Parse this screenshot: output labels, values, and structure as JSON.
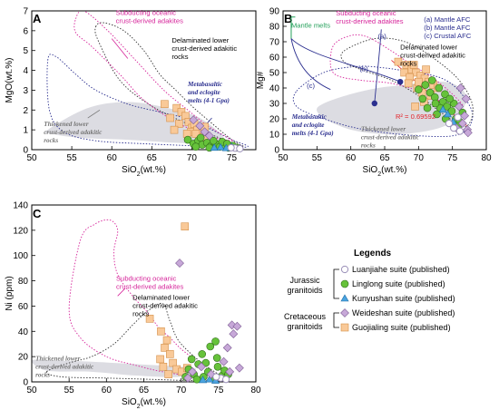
{
  "legend": {
    "title": "Legends",
    "group_jurassic": [
      "Jurassic",
      "granitoids"
    ],
    "group_cretaceous": [
      "Cretaceous",
      "granitoids"
    ],
    "items": [
      {
        "label": "Luanjiahe suite (published)",
        "marker": "circle-open",
        "color": "#9a8fb8"
      },
      {
        "label": "Linglong suite (published)",
        "marker": "circle",
        "color": "#66c23a"
      },
      {
        "label": "Kunyushan suite (published)",
        "marker": "triangle",
        "color": "#4aa3df"
      },
      {
        "label": "Weideshan suite (published)",
        "marker": "diamond",
        "color": "#c7a8d8"
      },
      {
        "label": "Guojialing suite (published)",
        "marker": "square",
        "color": "#f9c998"
      }
    ]
  },
  "colors": {
    "magenta": "#d6249a",
    "navy": "#2b2f8f",
    "gray": "#777777",
    "green": "#24a05a",
    "shade": "#dcdce2"
  },
  "chart_data": [
    {
      "id": "A",
      "type": "scatter",
      "panel_label": "A",
      "xlabel": "SiO2(wt.%)",
      "ylabel": "MgO(wt.%)",
      "xlim": [
        50,
        78
      ],
      "ylim": [
        0,
        7
      ],
      "xticks": [
        50,
        55,
        60,
        65,
        70,
        75
      ],
      "yticks": [
        0,
        1,
        2,
        3,
        4,
        5,
        6,
        7
      ],
      "annotations": [
        {
          "lines": [
            "Subducting oceanic",
            "crust-derived adakites"
          ],
          "color": "#d6249a",
          "style": "normal",
          "x": 60.5,
          "y": 6.8
        },
        {
          "lines": [
            "Delaminated lower",
            "crust-derived adakitic",
            "rocks"
          ],
          "color": "#000000",
          "style": "normal",
          "x": 67.5,
          "y": 5.4
        },
        {
          "lines": [
            "Metabasaltic",
            "and eclogite",
            "melts (4-1 Gpa)"
          ],
          "color": "#2b2f8f",
          "style": "bold-italic",
          "x": 69.5,
          "y": 3.2
        },
        {
          "lines": [
            "Thickened lower",
            "crust-derived adakitic",
            "rocks"
          ],
          "color": "#777777",
          "style": "bold-italic",
          "x": 51.5,
          "y": 1.2
        }
      ],
      "series": [
        {
          "name": "Guojialing suite (published)",
          "marker": "square",
          "points": [
            [
              66.6,
              2.3
            ],
            [
              67.3,
              1.6
            ],
            [
              68.1,
              2.1
            ],
            [
              68.7,
              1.9
            ],
            [
              69.2,
              1.7
            ],
            [
              69.6,
              1.4
            ],
            [
              70.0,
              1.1
            ],
            [
              70.3,
              1.3
            ],
            [
              69.9,
              0.9
            ],
            [
              70.7,
              1.0
            ],
            [
              71.2,
              0.6
            ],
            [
              70.5,
              0.8
            ],
            [
              71.9,
              0.55
            ],
            [
              68.4,
              1.3
            ],
            [
              67.8,
              1.0
            ],
            [
              69.4,
              0.8
            ],
            [
              71.6,
              1.15
            ]
          ]
        },
        {
          "name": "Linglong suite (published)",
          "marker": "circle",
          "points": [
            [
              69.5,
              0.5
            ],
            [
              70.2,
              0.3
            ],
            [
              70.8,
              0.45
            ],
            [
              71.3,
              0.25
            ],
            [
              71.9,
              0.35
            ],
            [
              72.4,
              0.2
            ],
            [
              73.0,
              0.3
            ],
            [
              73.5,
              0.15
            ],
            [
              74.1,
              0.25
            ],
            [
              74.6,
              0.1
            ],
            [
              75.1,
              0.2
            ],
            [
              72.7,
              0.45
            ],
            [
              71.1,
              0.6
            ],
            [
              73.8,
              0.4
            ],
            [
              75.6,
              0.1
            ],
            [
              70.5,
              0.15
            ],
            [
              72.2,
              0.1
            ],
            [
              74.4,
              0.3
            ]
          ]
        },
        {
          "name": "Kunyushan suite (published)",
          "marker": "triangle",
          "points": [
            [
              73.6,
              0.12
            ],
            [
              74.3,
              0.08
            ],
            [
              75.0,
              0.15
            ],
            [
              72.8,
              0.1
            ]
          ]
        },
        {
          "name": "Weideshan suite (published)",
          "marker": "diamond",
          "points": [
            [
              70.2,
              1.5
            ],
            [
              71.0,
              1.2
            ],
            [
              71.6,
              0.9
            ],
            [
              72.2,
              0.7
            ]
          ]
        },
        {
          "name": "Luanjiahe suite (published)",
          "marker": "circle-open",
          "points": [
            [
              75.4,
              0.08
            ],
            [
              76.0,
              0.05
            ],
            [
              74.9,
              0.1
            ]
          ]
        }
      ]
    },
    {
      "id": "B",
      "type": "scatter",
      "panel_label": "B",
      "xlabel": "SiO2(wt.%)",
      "ylabel": "Mg#",
      "xlim": [
        50,
        80
      ],
      "ylim": [
        0,
        90
      ],
      "xticks": [
        50,
        55,
        60,
        65,
        70,
        75,
        80
      ],
      "yticks": [
        0,
        10,
        20,
        30,
        40,
        50,
        60,
        70,
        80,
        90
      ],
      "annotations": [
        {
          "lines": [
            "Mantle melts"
          ],
          "color": "#24a05a",
          "style": "normal",
          "x": 51.2,
          "y": 79
        },
        {
          "lines": [
            "Subducting oceanic",
            "crust-derived adakites"
          ],
          "color": "#d6249a",
          "style": "normal",
          "x": 57.8,
          "y": 87
        },
        {
          "lines": [
            "Delaminated lower",
            "crust-derived adakitic",
            "rocks"
          ],
          "color": "#000000",
          "style": "normal",
          "x": 67.3,
          "y": 65
        },
        {
          "lines": [
            "(a) Mantle AFC",
            "(b) Mantle AFC",
            "(c) Crustal AFC"
          ],
          "color": "#2b2f8f",
          "style": "normal",
          "x": 70.8,
          "y": 83
        },
        {
          "lines": [
            "(a)"
          ],
          "color": "#2b2f8f",
          "style": "normal",
          "x": 64.0,
          "y": 72
        },
        {
          "lines": [
            "(b)"
          ],
          "color": "#2b2f8f",
          "style": "normal",
          "x": 61.3,
          "y": 51
        },
        {
          "lines": [
            "(c)"
          ],
          "color": "#2b2f8f",
          "style": "normal",
          "x": 53.5,
          "y": 40
        },
        {
          "lines": [
            "Metabasaltic",
            "and eclogite",
            "melts (4-1 Gpa)"
          ],
          "color": "#2b2f8f",
          "style": "bold-italic",
          "x": 51.3,
          "y": 20
        },
        {
          "lines": [
            "Thickened lower",
            "crust-derived adakitic",
            "rocks"
          ],
          "color": "#777777",
          "style": "bold-italic",
          "x": 61.5,
          "y": 12
        },
        {
          "lines": [
            "R² = 0.69592"
          ],
          "color": "#e3242b",
          "style": "normal",
          "x": 66.6,
          "y": 20
        }
      ],
      "series": [
        {
          "name": "Guojialing suite (published)",
          "marker": "square",
          "points": [
            [
              67.0,
              57
            ],
            [
              68.2,
              55
            ],
            [
              69.0,
              52
            ],
            [
              69.6,
              50
            ],
            [
              70.3,
              48
            ],
            [
              70.9,
              46
            ],
            [
              71.5,
              44
            ],
            [
              72.2,
              42
            ],
            [
              69.8,
              40
            ],
            [
              70.5,
              37
            ],
            [
              71.8,
              35
            ],
            [
              67.9,
              50
            ],
            [
              68.7,
              47
            ],
            [
              71.1,
              52
            ],
            [
              70.0,
              44
            ],
            [
              69.3,
              55
            ],
            [
              72.8,
              40
            ],
            [
              68.5,
              43
            ],
            [
              70.8,
              31
            ],
            [
              69.5,
              28
            ]
          ]
        },
        {
          "name": "Linglong suite (published)",
          "marker": "circle",
          "points": [
            [
              70.0,
              39
            ],
            [
              71.0,
              42
            ],
            [
              71.7,
              37
            ],
            [
              72.4,
              34
            ],
            [
              73.0,
              40
            ],
            [
              73.6,
              31
            ],
            [
              74.2,
              28
            ],
            [
              74.9,
              25
            ],
            [
              75.5,
              20
            ],
            [
              76.1,
              18
            ],
            [
              72.7,
              23
            ],
            [
              73.9,
              36
            ],
            [
              75.2,
              30
            ],
            [
              71.3,
              27
            ],
            [
              74.6,
              33
            ],
            [
              76.5,
              24
            ],
            [
              73.2,
              27
            ],
            [
              72.0,
              45
            ],
            [
              70.6,
              33
            ],
            [
              75.8,
              15
            ],
            [
              74.0,
              20
            ],
            [
              72.5,
              30
            ]
          ]
        },
        {
          "name": "Kunyushan suite (published)",
          "marker": "triangle",
          "points": [
            [
              74.3,
              23
            ],
            [
              75.1,
              18
            ],
            [
              73.6,
              26
            ]
          ]
        },
        {
          "name": "Weideshan suite (published)",
          "marker": "diamond",
          "points": [
            [
              76.0,
              28
            ],
            [
              76.8,
              22
            ],
            [
              77.2,
              13
            ],
            [
              76.5,
              17
            ],
            [
              77.0,
              33
            ],
            [
              75.6,
              14
            ],
            [
              77.3,
              11
            ],
            [
              76.2,
              40
            ]
          ]
        },
        {
          "name": "Luanjiahe suite (published)",
          "marker": "circle-open",
          "points": [
            [
              75.2,
              14
            ],
            [
              76.1,
              12
            ],
            [
              74.5,
              17
            ],
            [
              75.8,
              21
            ]
          ]
        }
      ],
      "afc_points": [
        {
          "x": 67.3,
          "y": 44
        },
        {
          "x": 63.5,
          "y": 30
        }
      ]
    },
    {
      "id": "C",
      "type": "scatter",
      "panel_label": "C",
      "xlabel": "SiO2(wt.%)",
      "ylabel": "Ni (ppm)",
      "xlim": [
        50,
        80
      ],
      "ylim": [
        0,
        140
      ],
      "xticks": [
        50,
        55,
        60,
        65,
        70,
        75,
        80
      ],
      "yticks": [
        0,
        20,
        40,
        60,
        80,
        100,
        120,
        140
      ],
      "annotations": [
        {
          "lines": [
            "Subducting oceanic",
            "crust-derived adakites"
          ],
          "color": "#d6249a",
          "style": "normal",
          "x": 61.3,
          "y": 80
        },
        {
          "lines": [
            "Delaminated lower",
            "crust-derived adakitic",
            "rocks"
          ],
          "color": "#000000",
          "style": "normal",
          "x": 63.5,
          "y": 65
        },
        {
          "lines": [
            "Thickened lower",
            "crust-derived adakitic",
            "rocks"
          ],
          "color": "#777777",
          "style": "bold-italic",
          "x": 50.5,
          "y": 17
        }
      ],
      "series": [
        {
          "name": "Guojialing suite (published)",
          "marker": "square",
          "points": [
            [
              70.5,
              123
            ],
            [
              65.8,
              50
            ],
            [
              67.3,
              40
            ],
            [
              68.1,
              33
            ],
            [
              67.8,
              27
            ],
            [
              68.5,
              22
            ],
            [
              67.2,
              18
            ],
            [
              68.9,
              15
            ],
            [
              67.6,
              12
            ],
            [
              69.4,
              10
            ],
            [
              70.1,
              8
            ],
            [
              68.3,
              6
            ],
            [
              70.8,
              11
            ]
          ]
        },
        {
          "name": "Linglong suite (published)",
          "marker": "circle",
          "points": [
            [
              71.0,
              10
            ],
            [
              71.7,
              6
            ],
            [
              72.3,
              14
            ],
            [
              73.0,
              4
            ],
            [
              73.6,
              8
            ],
            [
              74.2,
              3
            ],
            [
              74.9,
              12
            ],
            [
              75.5,
              5
            ],
            [
              72.8,
              22
            ],
            [
              71.4,
              18
            ],
            [
              73.9,
              28
            ],
            [
              74.6,
              32
            ],
            [
              72.1,
              2
            ],
            [
              75.8,
              9
            ],
            [
              70.6,
              4
            ],
            [
              76.3,
              6
            ],
            [
              73.3,
              15
            ],
            [
              74.8,
              19
            ]
          ]
        },
        {
          "name": "Kunyushan suite (published)",
          "marker": "triangle",
          "points": [
            [
              73.8,
              2
            ],
            [
              74.6,
              1
            ],
            [
              72.9,
              1.5
            ]
          ]
        },
        {
          "name": "Weideshan suite (published)",
          "marker": "diamond",
          "points": [
            [
              69.8,
              94
            ],
            [
              76.8,
              45
            ],
            [
              77.5,
              44
            ],
            [
              77.0,
              38
            ],
            [
              76.2,
              27
            ],
            [
              75.7,
              16
            ],
            [
              77.8,
              11
            ],
            [
              71.5,
              8
            ],
            [
              72.7,
              12
            ],
            [
              76.5,
              8
            ],
            [
              74.0,
              6
            ],
            [
              70.9,
              3
            ]
          ]
        },
        {
          "name": "Luanjiahe suite (published)",
          "marker": "circle-open",
          "points": [
            [
              75.3,
              3
            ],
            [
              76.0,
              2
            ],
            [
              74.7,
              4
            ]
          ]
        }
      ]
    }
  ]
}
